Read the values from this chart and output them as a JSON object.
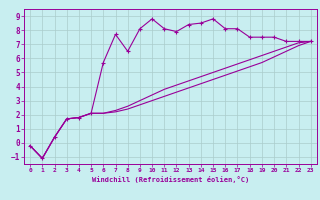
{
  "xlabel": "Windchill (Refroidissement éolien,°C)",
  "bg_color": "#c8eef0",
  "line_color": "#990099",
  "grid_color": "#aacccc",
  "xlim": [
    -0.5,
    23.5
  ],
  "ylim": [
    -1.5,
    9.5
  ],
  "xticks": [
    0,
    1,
    2,
    3,
    4,
    5,
    6,
    7,
    8,
    9,
    10,
    11,
    12,
    13,
    14,
    15,
    16,
    17,
    18,
    19,
    20,
    21,
    22,
    23
  ],
  "yticks": [
    -1,
    0,
    1,
    2,
    3,
    4,
    5,
    6,
    7,
    8,
    9
  ],
  "series1_x": [
    0,
    1,
    2,
    3,
    4,
    5,
    6,
    7,
    8,
    9,
    10,
    11,
    12,
    13,
    14,
    15,
    16,
    17,
    18,
    19,
    20,
    21,
    22,
    23
  ],
  "series1_y": [
    -0.2,
    -1.1,
    0.4,
    1.7,
    1.8,
    2.1,
    5.7,
    7.7,
    6.5,
    8.1,
    8.8,
    8.1,
    7.9,
    8.4,
    8.5,
    8.8,
    8.1,
    8.1,
    7.5,
    7.5,
    7.5,
    7.2,
    7.2,
    7.2
  ],
  "series2_x": [
    0,
    1,
    2,
    3,
    4,
    5,
    6,
    7,
    8,
    9,
    10,
    11,
    12,
    13,
    14,
    15,
    16,
    17,
    18,
    19,
    20,
    21,
    22,
    23
  ],
  "series2_y": [
    -0.2,
    -1.1,
    0.4,
    1.7,
    1.8,
    2.1,
    2.1,
    2.2,
    2.4,
    2.7,
    3.0,
    3.3,
    3.6,
    3.9,
    4.2,
    4.5,
    4.8,
    5.1,
    5.4,
    5.7,
    6.1,
    6.5,
    6.9,
    7.2
  ],
  "series3_x": [
    0,
    1,
    2,
    3,
    4,
    5,
    6,
    7,
    8,
    9,
    10,
    11,
    12,
    13,
    14,
    15,
    16,
    17,
    18,
    19,
    20,
    21,
    22,
    23
  ],
  "series3_y": [
    -0.2,
    -1.1,
    0.4,
    1.7,
    1.8,
    2.1,
    2.1,
    2.3,
    2.6,
    3.0,
    3.4,
    3.8,
    4.1,
    4.4,
    4.7,
    5.0,
    5.3,
    5.6,
    5.9,
    6.2,
    6.5,
    6.8,
    7.1,
    7.2
  ]
}
